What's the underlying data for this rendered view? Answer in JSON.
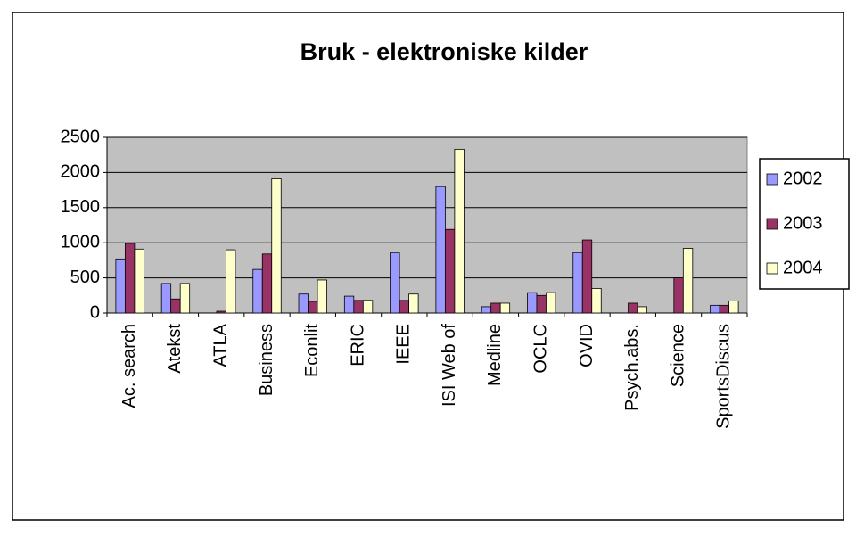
{
  "chart_data": {
    "type": "bar",
    "title": "Bruk - elektroniske kilder",
    "categories": [
      "Ac. search",
      "Atekst",
      "ATLA",
      "Business",
      "Econlit",
      "ERIC",
      "IEEE",
      "ISI Web of",
      "Medline",
      "OCLC",
      "OVID",
      "Psych.abs.",
      "Science",
      "SportsDiscus"
    ],
    "series": [
      {
        "name": "2002",
        "color": "#9999ff",
        "values": [
          770,
          420,
          0,
          620,
          270,
          240,
          860,
          1800,
          90,
          290,
          860,
          0,
          0,
          110
        ]
      },
      {
        "name": "2003",
        "color": "#993366",
        "values": [
          990,
          200,
          25,
          840,
          165,
          180,
          180,
          1190,
          140,
          250,
          1040,
          140,
          500,
          110
        ]
      },
      {
        "name": "2004",
        "color": "#ffffcc",
        "values": [
          910,
          420,
          900,
          1910,
          470,
          180,
          270,
          2330,
          140,
          290,
          350,
          90,
          920,
          170
        ]
      }
    ],
    "ylim": [
      0,
      2500
    ],
    "yticks": [
      0,
      500,
      1000,
      1500,
      2000,
      2500
    ],
    "grid": true,
    "legend": "right"
  }
}
